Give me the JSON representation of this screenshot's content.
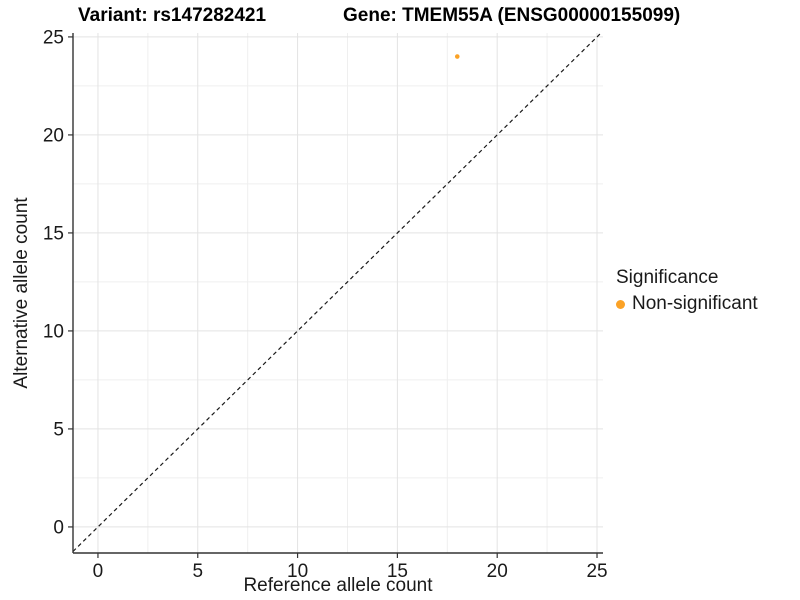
{
  "header": {
    "title_left": "Variant: rs147282421",
    "title_right": "Gene: TMEM55A (ENSG00000155099)"
  },
  "chart_data": {
    "type": "scatter",
    "title": "Variant: rs147282421 — Gene: TMEM55A (ENSG00000155099)",
    "xlabel": "Reference allele count",
    "ylabel": "Alternative allele count",
    "x_ticks": [
      0,
      5,
      10,
      15,
      20,
      25
    ],
    "y_ticks": [
      0,
      5,
      10,
      15,
      20,
      25
    ],
    "xlim": [
      -1.25,
      25.3
    ],
    "ylim": [
      -1.33,
      25.2
    ],
    "grid": {
      "minor": true,
      "major_color": "#E3E3E3",
      "minor_color": "#EFEFEF",
      "background": "#FFFFFF"
    },
    "axis": {
      "line_color": "#333333",
      "tick_color": "#333333",
      "text_color": "#1a1a1a"
    },
    "identity_line": {
      "slope": 1,
      "intercept": 0,
      "style": "dashed",
      "color": "#1a1a1a"
    },
    "points": [
      {
        "x": 18,
        "y": 24,
        "series": "Non-significant",
        "color": "#FBA226",
        "radius": 2.3
      }
    ],
    "legend": {
      "title": "Significance",
      "position": "right",
      "items": [
        {
          "label": "Non-significant",
          "color": "#FBA226"
        }
      ]
    }
  }
}
